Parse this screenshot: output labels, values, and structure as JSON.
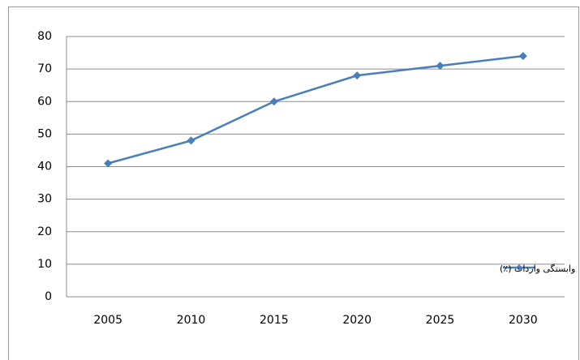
{
  "chart_data": {
    "type": "line",
    "categories": [
      "2005",
      "2010",
      "2015",
      "2020",
      "2025",
      "2030"
    ],
    "series": [
      {
        "name": "وابستگی واردات (٪)",
        "color": "#4a7ebb",
        "values": [
          41,
          48,
          60,
          68,
          71,
          74
        ]
      }
    ],
    "ylim": [
      0,
      80
    ],
    "yticks": [
      0,
      10,
      20,
      30,
      40,
      50,
      60,
      70,
      80
    ],
    "grid": true,
    "legend": "bottom-right"
  }
}
